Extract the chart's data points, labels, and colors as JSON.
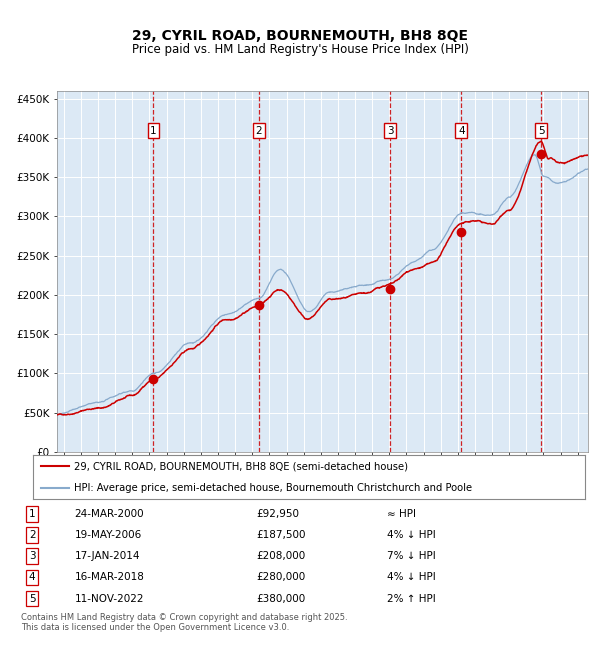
{
  "title": "29, CYRIL ROAD, BOURNEMOUTH, BH8 8QE",
  "subtitle": "Price paid vs. HM Land Registry's House Price Index (HPI)",
  "ylim": [
    0,
    460000
  ],
  "yticks": [
    0,
    50000,
    100000,
    150000,
    200000,
    250000,
    300000,
    350000,
    400000,
    450000
  ],
  "ytick_labels": [
    "£0",
    "£50K",
    "£100K",
    "£150K",
    "£200K",
    "£250K",
    "£300K",
    "£350K",
    "£400K",
    "£450K"
  ],
  "xlim_start": 1994.6,
  "xlim_end": 2025.6,
  "plot_bg": "#dce9f5",
  "line_color_red": "#cc0000",
  "line_color_blue": "#88aacc",
  "sale_dates": [
    2000.23,
    2006.38,
    2014.04,
    2018.21,
    2022.86
  ],
  "sale_prices": [
    92950,
    187500,
    208000,
    280000,
    380000
  ],
  "sale_labels": [
    "1",
    "2",
    "3",
    "4",
    "5"
  ],
  "legend_red": "29, CYRIL ROAD, BOURNEMOUTH, BH8 8QE (semi-detached house)",
  "legend_blue": "HPI: Average price, semi-detached house, Bournemouth Christchurch and Poole",
  "table_rows": [
    [
      "1",
      "24-MAR-2000",
      "£92,950",
      "≈ HPI"
    ],
    [
      "2",
      "19-MAY-2006",
      "£187,500",
      "4% ↓ HPI"
    ],
    [
      "3",
      "17-JAN-2014",
      "£208,000",
      "7% ↓ HPI"
    ],
    [
      "4",
      "16-MAR-2018",
      "£280,000",
      "4% ↓ HPI"
    ],
    [
      "5",
      "11-NOV-2022",
      "£380,000",
      "2% ↑ HPI"
    ]
  ],
  "footnote": "Contains HM Land Registry data © Crown copyright and database right 2025.\nThis data is licensed under the Open Government Licence v3.0.",
  "grid_color": "#ffffff",
  "dashed_color": "#cc0000"
}
